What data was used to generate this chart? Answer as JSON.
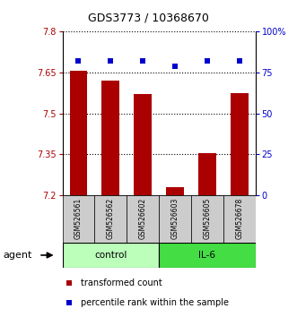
{
  "title": "GDS3773 / 10368670",
  "samples": [
    "GSM526561",
    "GSM526562",
    "GSM526602",
    "GSM526603",
    "GSM526605",
    "GSM526678"
  ],
  "bar_values": [
    7.655,
    7.62,
    7.57,
    7.228,
    7.355,
    7.575
  ],
  "percentile_values": [
    82,
    82,
    82,
    79,
    82,
    82
  ],
  "ylim_left": [
    7.2,
    7.8
  ],
  "ylim_right": [
    0,
    100
  ],
  "yticks_left": [
    7.2,
    7.35,
    7.5,
    7.65,
    7.8
  ],
  "ytick_labels_left": [
    "7.2",
    "7.35",
    "7.5",
    "7.65",
    "7.8"
  ],
  "yticks_right": [
    0,
    25,
    50,
    75,
    100
  ],
  "ytick_labels_right": [
    "0",
    "25",
    "50",
    "75",
    "100%"
  ],
  "bar_color": "#aa0000",
  "scatter_color": "#0000cc",
  "sample_box_color": "#cccccc",
  "groups": [
    {
      "label": "control",
      "indices": [
        0,
        1,
        2
      ],
      "color": "#bbffbb"
    },
    {
      "label": "IL-6",
      "indices": [
        3,
        4,
        5
      ],
      "color": "#44dd44"
    }
  ],
  "agent_label": "agent",
  "legend_bar_label": "transformed count",
  "legend_scatter_label": "percentile rank within the sample",
  "title_fontsize": 9,
  "tick_fontsize": 7,
  "sample_fontsize": 5.5,
  "group_fontsize": 7.5,
  "legend_fontsize": 7,
  "agent_fontsize": 8,
  "bar_width": 0.55,
  "x_positions": [
    0,
    1,
    2,
    3,
    4,
    5
  ]
}
